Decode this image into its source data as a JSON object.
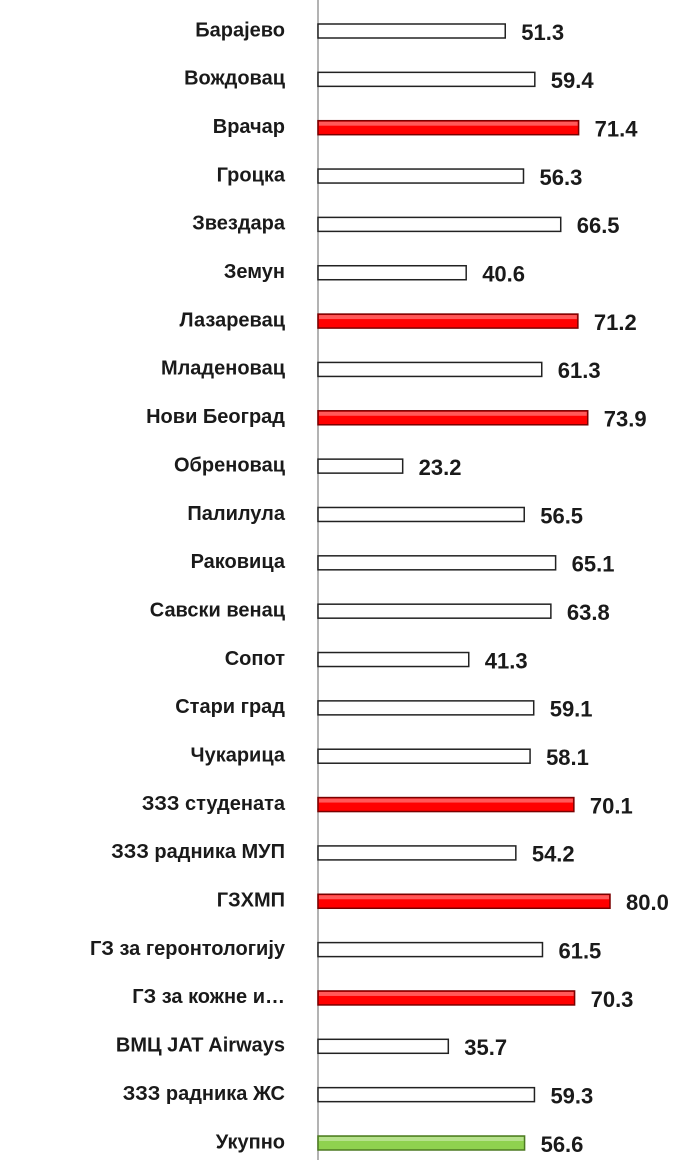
{
  "chart_data": {
    "type": "barh",
    "categories": [
      "Барајево",
      "Вождовац",
      "Врачар",
      "Гроцка",
      "Звездара",
      "Земун",
      "Лазаревац",
      "Младеновац",
      "Нови Београд",
      "Обреновац",
      "Палилула",
      "Раковица",
      "Савски венац",
      "Сопот",
      "Стари град",
      "Чукарица",
      "ЗЗЗ студената",
      "ЗЗЗ радника МУП",
      "ГЗХМП",
      "ГЗ за геронтологију",
      "ГЗ за кожне и…",
      "ВМЦ JAT Airways",
      "ЗЗЗ радника ЖС",
      "Укупно"
    ],
    "values": [
      51.3,
      59.4,
      71.4,
      56.3,
      66.5,
      40.6,
      71.2,
      61.3,
      73.9,
      23.2,
      56.5,
      65.1,
      63.8,
      41.3,
      59.1,
      58.1,
      70.1,
      54.2,
      80.0,
      61.5,
      70.3,
      35.7,
      59.3,
      56.6
    ],
    "value_labels": [
      "51.3",
      "59.4",
      "71.4",
      "56.3",
      "66.5",
      "40.6",
      "71.2",
      "61.3",
      "73.9",
      "23.2",
      "56.5",
      "65.1",
      "63.8",
      "41.3",
      "59.1",
      "58.1",
      "70.1",
      "54.2",
      "80.0",
      "61.5",
      "70.3",
      "35.7",
      "59.3",
      "56.6"
    ],
    "colors": [
      "#ffffff",
      "#ffffff",
      "#ff0000",
      "#ffffff",
      "#ffffff",
      "#ffffff",
      "#ff0000",
      "#ffffff",
      "#ff0000",
      "#ffffff",
      "#ffffff",
      "#ffffff",
      "#ffffff",
      "#ffffff",
      "#ffffff",
      "#ffffff",
      "#ff0000",
      "#ffffff",
      "#ff0000",
      "#ffffff",
      "#ff0000",
      "#ffffff",
      "#ffffff",
      "#8fd14f"
    ],
    "xlim": [
      0,
      100
    ]
  }
}
